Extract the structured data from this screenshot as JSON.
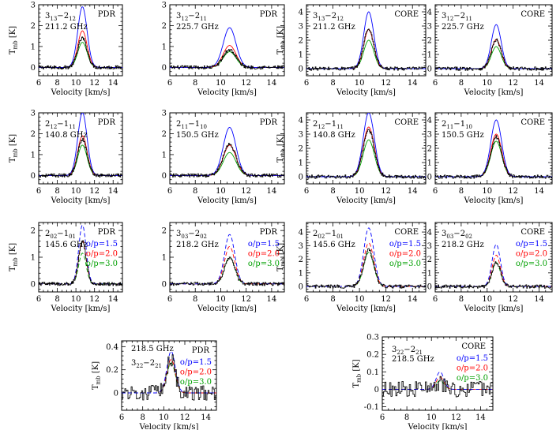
{
  "chart_data": {
    "type": "line",
    "x_label": "Velocity [km/s]",
    "y_label": "T",
    "y_label_sub": "mb",
    "y_label_unit": "[K]",
    "xlim": [
      6,
      15
    ],
    "x_ticks": [
      6,
      8,
      10,
      12,
      14
    ],
    "line_center_kms": 10.7,
    "colors": {
      "observed": "#000000",
      "op_1_5": "#0000ff",
      "op_2_0": "#ff0000",
      "op_3_0": "#00a000"
    },
    "legend_labels": [
      "o/p=1.5",
      "o/p=2.0",
      "o/p=3.0"
    ],
    "panels": [
      {
        "id": "pdr-313",
        "region": "PDR",
        "trans": "3",
        "trans_sub": "13",
        "trans2": "2",
        "trans2_sub": "12",
        "freq": "211.2 GHz",
        "ylim": [
          -0.4,
          3
        ],
        "y_ticks": [
          0,
          1,
          2,
          3
        ],
        "peaks": {
          "observed": 1.4,
          "op_1_5": 2.9,
          "op_2_0": 1.75,
          "op_3_0": 1.2
        },
        "width_kms": 0.5,
        "legend": false
      },
      {
        "id": "pdr-312",
        "region": "PDR",
        "trans": "3",
        "trans_sub": "12",
        "trans2": "2",
        "trans2_sub": "11",
        "freq": "225.7 GHz",
        "ylim": [
          -0.4,
          3
        ],
        "y_ticks": [
          0,
          1,
          2,
          3
        ],
        "peaks": {
          "observed": 0.85,
          "op_1_5": 1.9,
          "op_2_0": 1.05,
          "op_3_0": 0.75
        },
        "width_kms": 0.5,
        "legend": false
      },
      {
        "id": "core-313",
        "region": "CORE",
        "trans": "3",
        "trans_sub": "13",
        "trans2": "2",
        "trans2_sub": "12",
        "freq": "211.2 GHz",
        "ylim": [
          -0.5,
          4.5
        ],
        "y_ticks": [
          0,
          1,
          2,
          3,
          4
        ],
        "peaks": {
          "observed": 2.8,
          "op_1_5": 4.0,
          "op_2_0": 2.75,
          "op_3_0": 2.0
        },
        "width_kms": 0.38,
        "legend": false
      },
      {
        "id": "core-312",
        "region": "CORE",
        "trans": "3",
        "trans_sub": "12",
        "trans2": "2",
        "trans2_sub": "11",
        "freq": "225.7 GHz",
        "ylim": [
          -0.5,
          4.5
        ],
        "y_ticks": [
          0,
          1,
          2,
          3,
          4
        ],
        "peaks": {
          "observed": 2.0,
          "op_1_5": 3.1,
          "op_2_0": 2.05,
          "op_3_0": 1.55
        },
        "width_kms": 0.38,
        "legend": false
      },
      {
        "id": "pdr-212",
        "region": "PDR",
        "trans": "2",
        "trans_sub": "12",
        "trans2": "1",
        "trans2_sub": "11",
        "freq": "140.8 GHz",
        "ylim": [
          -0.4,
          3
        ],
        "y_ticks": [
          0,
          1,
          2,
          3
        ],
        "peaks": {
          "observed": 1.75,
          "op_1_5": 3.0,
          "op_2_0": 1.9,
          "op_3_0": 1.45
        },
        "width_kms": 0.5,
        "legend": false
      },
      {
        "id": "pdr-211",
        "region": "PDR",
        "trans": "2",
        "trans_sub": "11",
        "trans2": "1",
        "trans2_sub": "10",
        "freq": "150.5 GHz",
        "ylim": [
          -0.4,
          3
        ],
        "y_ticks": [
          0,
          1,
          2,
          3
        ],
        "peaks": {
          "observed": 1.5,
          "op_1_5": 2.3,
          "op_2_0": 1.45,
          "op_3_0": 1.1
        },
        "width_kms": 0.5,
        "legend": false
      },
      {
        "id": "core-212",
        "region": "CORE",
        "trans": "2",
        "trans_sub": "12",
        "trans2": "1",
        "trans2_sub": "11",
        "freq": "140.8 GHz",
        "ylim": [
          -0.5,
          4.5
        ],
        "y_ticks": [
          0,
          1,
          2,
          3,
          4
        ],
        "peaks": {
          "observed": 3.3,
          "op_1_5": 4.5,
          "op_2_0": 3.5,
          "op_3_0": 2.6
        },
        "width_kms": 0.42,
        "legend": false
      },
      {
        "id": "core-211",
        "region": "CORE",
        "trans": "2",
        "trans_sub": "11",
        "trans2": "1",
        "trans2_sub": "10",
        "freq": "150.5 GHz",
        "ylim": [
          -0.5,
          4.5
        ],
        "y_ticks": [
          0,
          1,
          2,
          3,
          4
        ],
        "peaks": {
          "observed": 2.8,
          "op_1_5": 4.0,
          "op_2_0": 3.0,
          "op_3_0": 2.5
        },
        "width_kms": 0.42,
        "legend": false
      },
      {
        "id": "pdr-202",
        "region": "PDR",
        "trans": "2",
        "trans_sub": "02",
        "trans2": "1",
        "trans2_sub": "01",
        "freq": "145.6 GHz",
        "ylim": [
          -0.3,
          2.3
        ],
        "y_ticks": [
          0,
          1,
          2
        ],
        "peaks": {
          "observed": 1.6,
          "op_1_5": 2.2,
          "op_2_0": 1.6,
          "op_3_0": 1.15
        },
        "width_kms": 0.4,
        "legend": true
      },
      {
        "id": "pdr-303",
        "region": "PDR",
        "trans": "3",
        "trans_sub": "03",
        "trans2": "2",
        "trans2_sub": "02",
        "freq": "218.2 GHz",
        "ylim": [
          -0.3,
          2.3
        ],
        "y_ticks": [
          0,
          1,
          2
        ],
        "peaks": {
          "observed": 1.0,
          "op_1_5": 1.85,
          "op_2_0": 1.4,
          "op_3_0": 1.0
        },
        "width_kms": 0.4,
        "legend": true
      },
      {
        "id": "core-202",
        "region": "CORE",
        "trans": "2",
        "trans_sub": "02",
        "trans2": "1",
        "trans2_sub": "01",
        "freq": "145.6 GHz",
        "ylim": [
          -0.4,
          4.7
        ],
        "y_ticks": [
          0,
          1,
          2,
          3,
          4
        ],
        "peaks": {
          "observed": 2.7,
          "op_1_5": 4.3,
          "op_2_0": 3.2,
          "op_3_0": 2.5
        },
        "width_kms": 0.38,
        "legend": true
      },
      {
        "id": "core-303",
        "region": "CORE",
        "trans": "3",
        "trans_sub": "03",
        "trans2": "2",
        "trans2_sub": "02",
        "freq": "218.2 GHz",
        "ylim": [
          -0.4,
          4.7
        ],
        "y_ticks": [
          0,
          1,
          2,
          3,
          4
        ],
        "peaks": {
          "observed": 1.8,
          "op_1_5": 3.1,
          "op_2_0": 2.3,
          "op_3_0": 1.75
        },
        "width_kms": 0.32,
        "legend": true
      },
      {
        "id": "pdr-322",
        "region": "PDR",
        "trans": "3",
        "trans_sub": "22",
        "trans2": "2",
        "trans2_sub": "21",
        "freq": "218.5 GHz",
        "ylim": [
          -0.15,
          0.45
        ],
        "y_ticks": [
          0,
          0.2,
          0.4
        ],
        "peaks": {
          "observed": 0.3,
          "op_1_5": 0.36,
          "op_2_0": 0.29,
          "op_3_0": 0.26
        },
        "width_kms": 0.4,
        "legend": true
      },
      {
        "id": "core-322",
        "region": "CORE",
        "trans": "3",
        "trans_sub": "22",
        "trans2": "2",
        "trans2_sub": "21",
        "freq": "218.5 GHz",
        "ylim": [
          -0.12,
          0.3
        ],
        "y_ticks": [
          -0.1,
          0,
          0.1,
          0.2,
          0.3
        ],
        "peaks": {
          "observed": 0.03,
          "op_1_5": 0.1,
          "op_2_0": 0.07,
          "op_3_0": 0.05
        },
        "width_kms": 0.32,
        "legend": true
      }
    ]
  }
}
